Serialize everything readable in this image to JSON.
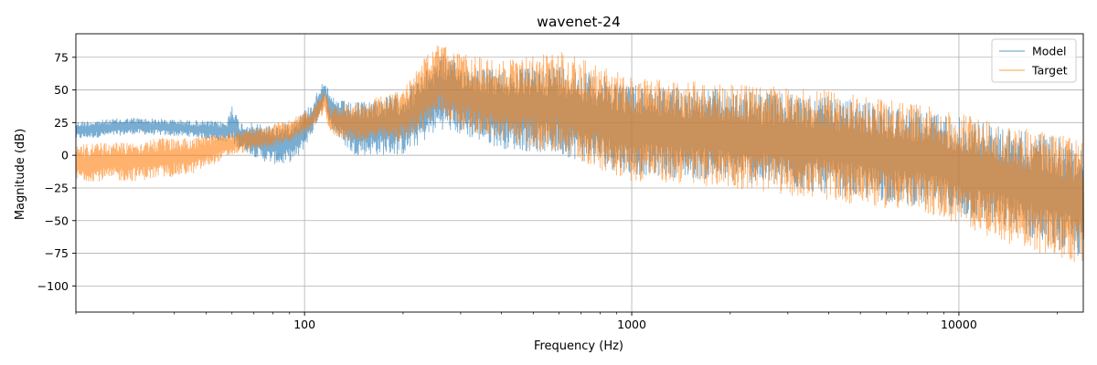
{
  "chart_data": {
    "type": "line",
    "title": "wavenet-24",
    "xlabel": "Frequency (Hz)",
    "ylabel": "Magnitude (dB)",
    "xscale": "log",
    "xlim": [
      20,
      24000
    ],
    "ylim": [
      -120,
      93
    ],
    "grid": true,
    "legend_position": "top-right",
    "x_ticks": [
      {
        "value": 100,
        "label": "100"
      },
      {
        "value": 1000,
        "label": "1000"
      },
      {
        "value": 10000,
        "label": "10000"
      }
    ],
    "y_ticks": [
      {
        "value": 75,
        "label": "75"
      },
      {
        "value": 50,
        "label": "50"
      },
      {
        "value": 25,
        "label": "25"
      },
      {
        "value": 0,
        "label": "0"
      },
      {
        "value": -25,
        "label": "−25"
      },
      {
        "value": -50,
        "label": "−50"
      },
      {
        "value": -75,
        "label": "−75"
      },
      {
        "value": -100,
        "label": "−100"
      }
    ],
    "series": [
      {
        "name": "Model",
        "color": "#1f77b4",
        "alpha": 0.6,
        "envelope": [
          {
            "x": 20,
            "high": 26,
            "low": 12
          },
          {
            "x": 30,
            "high": 29,
            "low": 16
          },
          {
            "x": 45,
            "high": 27,
            "low": 14
          },
          {
            "x": 58,
            "high": 26,
            "low": 10
          },
          {
            "x": 60,
            "high": 42,
            "low": 8
          },
          {
            "x": 63,
            "high": 26,
            "low": 5
          },
          {
            "x": 75,
            "high": 24,
            "low": -5
          },
          {
            "x": 85,
            "high": 23,
            "low": -8
          },
          {
            "x": 95,
            "high": 30,
            "low": -3
          },
          {
            "x": 105,
            "high": 40,
            "low": 15
          },
          {
            "x": 115,
            "high": 60,
            "low": 40
          },
          {
            "x": 120,
            "high": 45,
            "low": 20
          },
          {
            "x": 140,
            "high": 40,
            "low": 0
          },
          {
            "x": 200,
            "high": 48,
            "low": 0
          },
          {
            "x": 230,
            "high": 62,
            "low": 10
          },
          {
            "x": 260,
            "high": 78,
            "low": 20
          },
          {
            "x": 300,
            "high": 70,
            "low": 15
          },
          {
            "x": 400,
            "high": 65,
            "low": 5
          },
          {
            "x": 600,
            "high": 70,
            "low": 0
          },
          {
            "x": 1000,
            "high": 55,
            "low": -15
          },
          {
            "x": 2000,
            "high": 50,
            "low": -20
          },
          {
            "x": 4000,
            "high": 45,
            "low": -30
          },
          {
            "x": 8000,
            "high": 35,
            "low": -40
          },
          {
            "x": 15000,
            "high": 20,
            "low": -60
          },
          {
            "x": 24000,
            "high": 10,
            "low": -80
          }
        ]
      },
      {
        "name": "Target",
        "color": "#ff7f0e",
        "alpha": 0.6,
        "envelope": [
          {
            "x": 20,
            "high": 8,
            "low": -20
          },
          {
            "x": 30,
            "high": 12,
            "low": -20
          },
          {
            "x": 45,
            "high": 14,
            "low": -15
          },
          {
            "x": 60,
            "high": 18,
            "low": 0
          },
          {
            "x": 75,
            "high": 22,
            "low": 5
          },
          {
            "x": 90,
            "high": 28,
            "low": 10
          },
          {
            "x": 105,
            "high": 35,
            "low": 20
          },
          {
            "x": 115,
            "high": 50,
            "low": 32
          },
          {
            "x": 120,
            "high": 38,
            "low": 15
          },
          {
            "x": 140,
            "high": 40,
            "low": 10
          },
          {
            "x": 200,
            "high": 50,
            "low": 10
          },
          {
            "x": 230,
            "high": 75,
            "low": 20
          },
          {
            "x": 260,
            "high": 86,
            "low": 30
          },
          {
            "x": 300,
            "high": 78,
            "low": 20
          },
          {
            "x": 400,
            "high": 72,
            "low": 10
          },
          {
            "x": 600,
            "high": 80,
            "low": 0
          },
          {
            "x": 1000,
            "high": 60,
            "low": -20
          },
          {
            "x": 2000,
            "high": 55,
            "low": -25
          },
          {
            "x": 4000,
            "high": 50,
            "low": -35
          },
          {
            "x": 8000,
            "high": 38,
            "low": -45
          },
          {
            "x": 15000,
            "high": 22,
            "low": -70
          },
          {
            "x": 24000,
            "high": 12,
            "low": -85
          }
        ]
      }
    ]
  }
}
